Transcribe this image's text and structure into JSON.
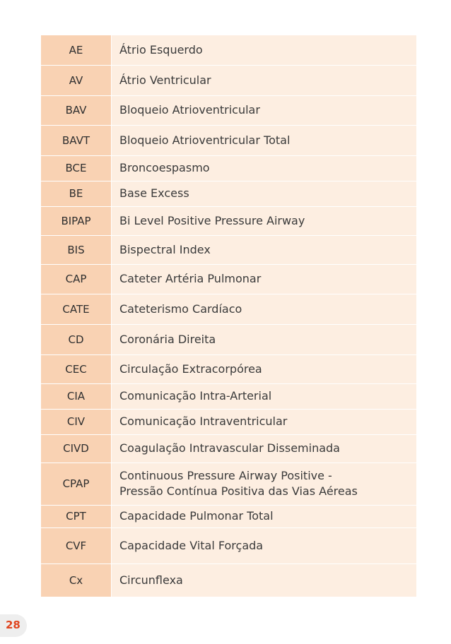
{
  "page_number": "28",
  "rows": [
    {
      "code": "AE",
      "meaning": "Átrio Esquerdo"
    },
    {
      "code": "AV",
      "meaning": "Átrio Ventricular"
    },
    {
      "code": "BAV",
      "meaning": "Bloqueio Atrioventricular"
    },
    {
      "code": "BAVT",
      "meaning": "Bloqueio Atrioventricular Total"
    },
    {
      "code": "BCE",
      "meaning": "Broncoespasmo"
    },
    {
      "code": "BE",
      "meaning": "Base Excess"
    },
    {
      "code": "BIPAP",
      "meaning": "Bi Level Positive Pressure Airway"
    },
    {
      "code": "BIS",
      "meaning": "Bispectral Index"
    },
    {
      "code": "CAP",
      "meaning": "Cateter Artéria Pulmonar"
    },
    {
      "code": "CATE",
      "meaning": "Cateterismo Cardíaco"
    },
    {
      "code": "CD",
      "meaning": "Coronária Direita"
    },
    {
      "code": "CEC",
      "meaning": "Circulação Extracorpórea"
    },
    {
      "code": "CIA",
      "meaning": "Comunicação Intra-Arterial"
    },
    {
      "code": "CIV",
      "meaning": "Comunicação Intraventricular"
    },
    {
      "code": "CIVD",
      "meaning": "Coagulação Intravascular Disseminada"
    },
    {
      "code": "CPAP",
      "meaning": "Continuous Pressure Airway Positive -",
      "meaning_line2": "Pressão Contínua Positiva das Vias Aéreas"
    },
    {
      "code": "CPT",
      "meaning": "Capacidade Pulmonar Total"
    },
    {
      "code": "CVF",
      "meaning": "Capacidade Vital Forçada"
    },
    {
      "code": "Cx",
      "meaning": "Circunflexa"
    }
  ]
}
